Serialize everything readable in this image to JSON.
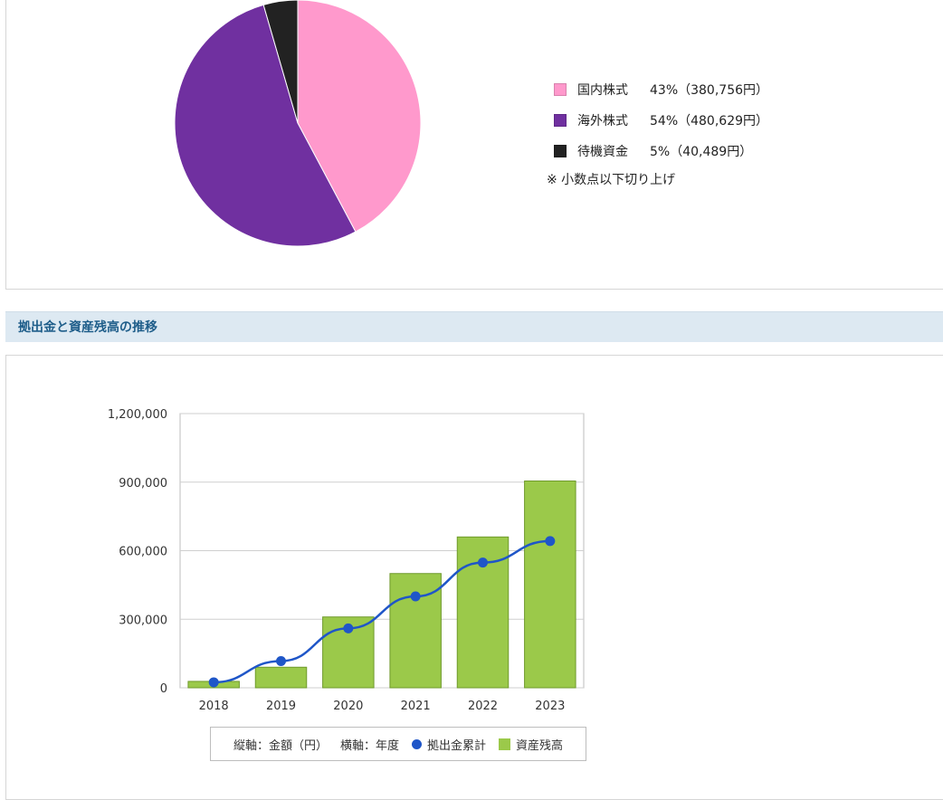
{
  "pie": {
    "legend": [
      {
        "label": "国内株式",
        "pct": "43%（380,756円）",
        "color": "#ff99cc",
        "value": 380756
      },
      {
        "label": "海外株式",
        "pct": "54%（480,629円）",
        "color": "#7030a0",
        "value": 480629
      },
      {
        "label": "待機資金",
        "pct": "5%（40,489円）",
        "color": "#222222",
        "value": 40489
      }
    ],
    "note": "※ 小数点以下切り上げ"
  },
  "section": {
    "title": "拠出金と資産残高の推移"
  },
  "legend_labels": {
    "yaxis": "縦軸：金額（円）",
    "xaxis": "横軸：年度",
    "contrib": "拠出金累計",
    "balance": "資産残高"
  },
  "chart_data": [
    {
      "type": "pie",
      "categories": [
        "国内株式",
        "海外株式",
        "待機資金"
      ],
      "values": [
        380756,
        480629,
        40489
      ],
      "colors": [
        "#ff99cc",
        "#7030a0",
        "#222222"
      ]
    },
    {
      "type": "bar",
      "categories": [
        "2018",
        "2019",
        "2020",
        "2021",
        "2022",
        "2023"
      ],
      "series": [
        {
          "name": "資産残高",
          "type": "bar",
          "values": [
            28000,
            90000,
            310000,
            500000,
            660000,
            905000
          ],
          "color": "#9bc94a"
        },
        {
          "name": "拠出金累計",
          "type": "line",
          "values": [
            24000,
            117000,
            260000,
            400000,
            548000,
            642000
          ],
          "color": "#1f56c8"
        }
      ],
      "yticks": [
        "0",
        "300,000",
        "600,000",
        "900,000",
        "1,200,000"
      ],
      "ylim": [
        0,
        1200000
      ],
      "grid": true,
      "legend_position": "bottom"
    }
  ]
}
